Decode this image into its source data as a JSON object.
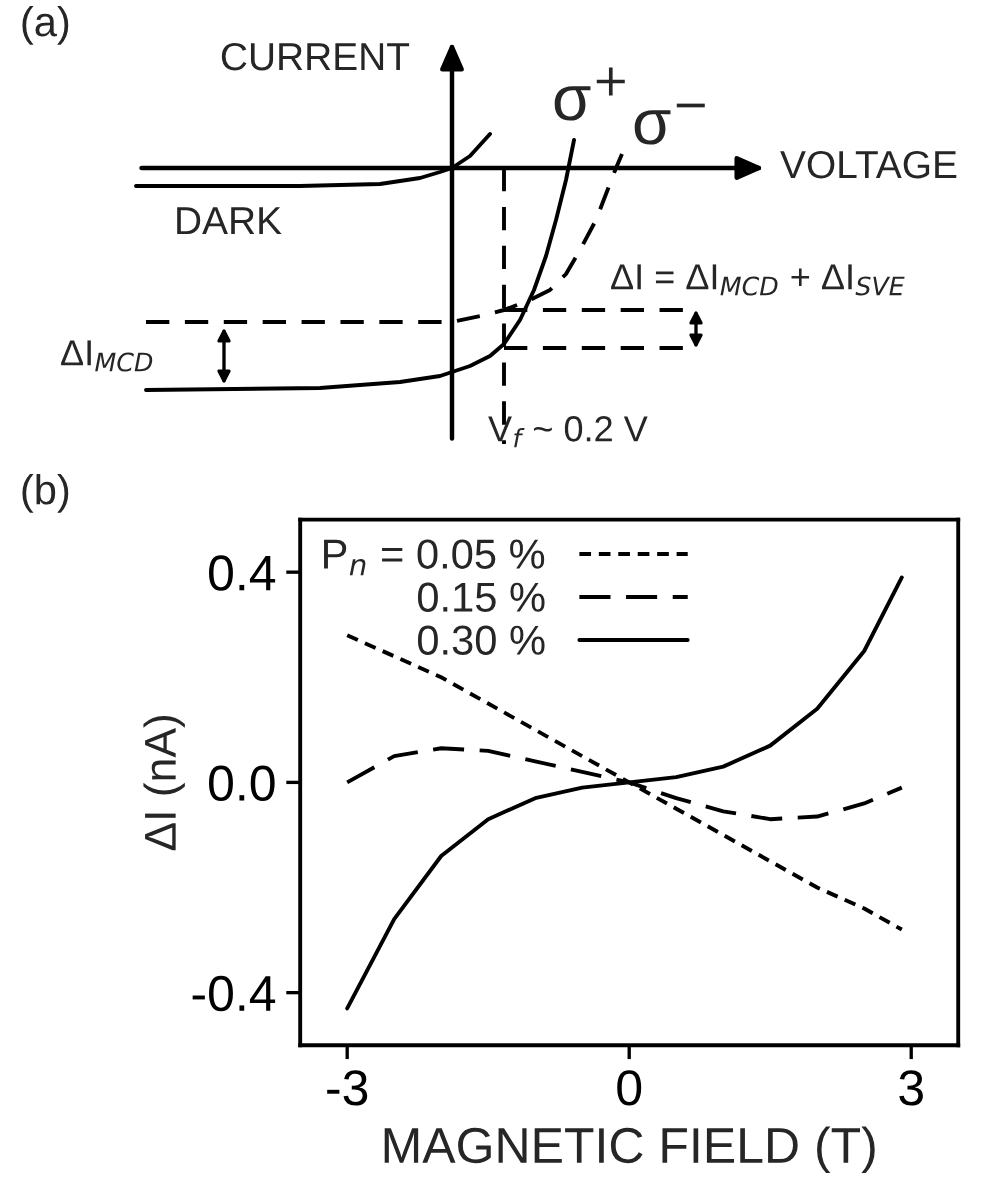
{
  "chart_data": [
    {
      "type": "other",
      "title": "(a)",
      "xlabel": "VOLTAGE",
      "ylabel": "CURRENT",
      "annotations": [
        "DARK",
        "σ$^{+}$",
        "σ$^{−}$",
        "ΔI = ΔI$_{MCD}$ + ΔI$_{SVE}$",
        "ΔI$_{MCD}$",
        "V$_{f}$ ~ 0.2 V"
      ]
    },
    {
      "type": "line",
      "title": "(b)",
      "xlabel": "MAGNETIC FIELD (T)",
      "ylabel": "ΔI (nA)",
      "xlim": [
        -3.5,
        3.5
      ],
      "ylim": [
        -0.5,
        0.5
      ],
      "xticks": [
        -3,
        0,
        3
      ],
      "yticks": [
        {
          "value": -0.4,
          "label": "-0.4"
        },
        {
          "value": 0.0,
          "label": "0.0"
        },
        0.4
      ],
      "grid": false,
      "legend": "top",
      "x": [
        -3,
        -2.5,
        -2,
        -1.5,
        -1,
        -0.5,
        0,
        0.5,
        1,
        1.5,
        2,
        2.5,
        2.9
      ],
      "series": [
        {
          "name": "P$_{n}$ = 0.05 %",
          "color": "#000000",
          "line_style": "dotted",
          "values": [
            0.28,
            0.24,
            0.2,
            0.15,
            0.1,
            0.05,
            0.0,
            -0.05,
            -0.1,
            -0.15,
            -0.2,
            -0.24,
            -0.28
          ]
        },
        {
          "name": "0.15 %",
          "color": "#000000",
          "line_style": "dashed",
          "values": [
            0.0,
            0.05,
            0.065,
            0.06,
            0.04,
            0.02,
            0.0,
            -0.03,
            -0.055,
            -0.07,
            -0.065,
            -0.04,
            -0.01
          ]
        },
        {
          "name": "0.30 %",
          "color": "#000000",
          "line_style": "solid",
          "values": [
            -0.43,
            -0.26,
            -0.14,
            -0.07,
            -0.03,
            -0.01,
            0.0,
            0.01,
            0.03,
            0.07,
            0.14,
            0.25,
            0.39
          ]
        }
      ]
    }
  ]
}
